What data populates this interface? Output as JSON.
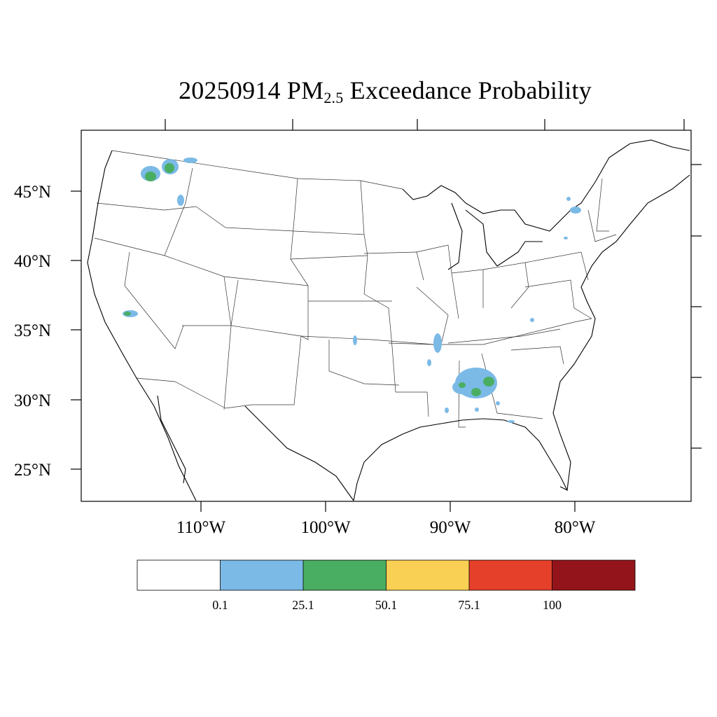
{
  "title": {
    "date": "20250914",
    "pollutant_main": "PM",
    "pollutant_sub": "2.5",
    "suffix": "Exceedance Probability"
  },
  "axes": {
    "lat_labels": [
      "45°N",
      "40°N",
      "35°N",
      "30°N",
      "25°N"
    ],
    "lon_labels": [
      "110°W",
      "100°W",
      "90°W",
      "80°W"
    ]
  },
  "colorbar": {
    "colors": [
      "#ffffff",
      "#7bbae6",
      "#4aae62",
      "#f9cf54",
      "#e4402a",
      "#93151b"
    ],
    "labels": [
      "0.1",
      "25.1",
      "50.1",
      "75.1",
      "100"
    ]
  },
  "chart_data": {
    "type": "heatmap",
    "title": "20250914 PM2.5 Exceedance Probability",
    "lat_ticks": [
      45,
      40,
      35,
      30,
      25
    ],
    "lon_ticks": [
      -110,
      -100,
      -90,
      -80
    ],
    "bins": [
      0.1,
      25.1,
      50.1,
      75.1,
      100
    ],
    "hotspots": [
      {
        "region": "NE Washington / N Idaho",
        "max_bin": "25.1-50.1"
      },
      {
        "region": "Central Sierra Nevada, CA",
        "max_bin": "25.1-50.1"
      },
      {
        "region": "Central Alabama",
        "max_bin": "25.1-50.1"
      },
      {
        "region": "W Mississippi / Louisiana border",
        "max_bin": "0.1-25.1"
      },
      {
        "region": "N New York",
        "max_bin": "0.1-25.1"
      },
      {
        "region": "Central Oklahoma",
        "max_bin": "0.1-25.1"
      }
    ]
  }
}
